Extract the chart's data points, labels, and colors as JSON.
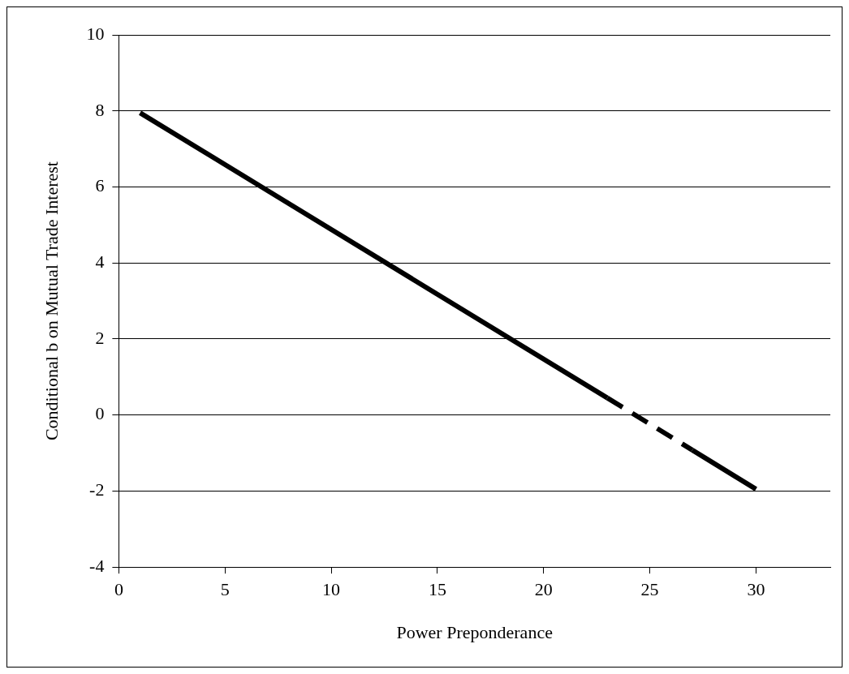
{
  "chart_data": {
    "type": "line",
    "xlabel": "Power Preponderance",
    "ylabel": "Conditional b on Mutual Trade Interest",
    "series": [
      {
        "color": "#000000",
        "x": [
          1,
          23
        ],
        "values": [
          7.95,
          0.45
        ],
        "line_style": "solid"
      },
      {
        "color": "#000000",
        "x": [
          23,
          27
        ],
        "values": [
          0.45,
          -0.92
        ],
        "line_style": "dashed"
      },
      {
        "color": "#000000",
        "x": [
          27,
          30
        ],
        "values": [
          -0.92,
          -1.95
        ],
        "line_style": "solid"
      }
    ],
    "xlim": [
      0,
      33.5
    ],
    "xticks": [
      0,
      5,
      10,
      15,
      20,
      25,
      30
    ],
    "ylim": [
      -4,
      10
    ],
    "yticks": [
      -4,
      -2,
      0,
      2,
      4,
      6,
      8,
      10
    ],
    "grid": "y",
    "legend": false,
    "marker": "none"
  }
}
